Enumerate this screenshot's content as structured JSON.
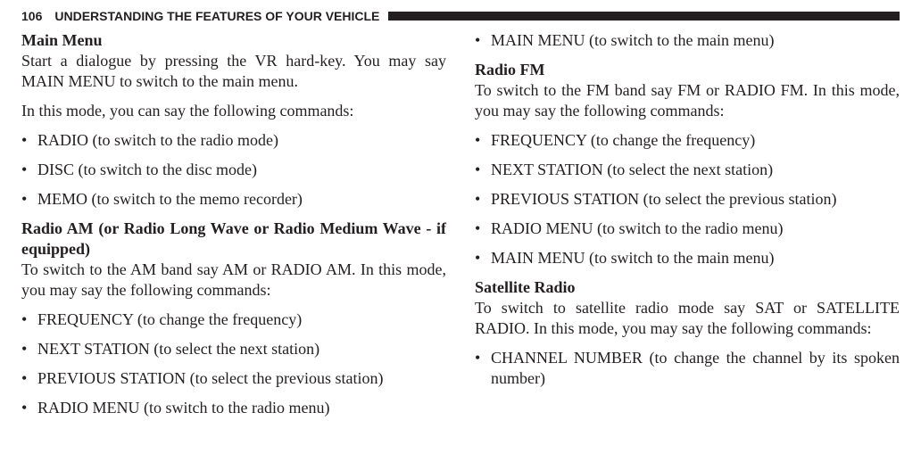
{
  "header": {
    "page_number": "106",
    "section_title": "UNDERSTANDING THE FEATURES OF YOUR VEHICLE"
  },
  "left": {
    "main_menu_heading": "Main Menu",
    "main_menu_body1": "Start a dialogue by pressing the VR hard-key. You may say MAIN MENU to switch to the main menu.",
    "main_menu_body2": "In this mode, you can say the following commands:",
    "main_menu_items": {
      "i0": "RADIO (to switch to the radio mode)",
      "i1": "DISC (to switch to the disc mode)",
      "i2": "MEMO (to switch to the memo recorder)"
    },
    "radio_am_heading": "Radio AM (or Radio Long Wave or Radio Medium Wave - if equipped)",
    "radio_am_body": "To switch to the AM band say AM or RADIO AM. In this mode, you may say the following commands:",
    "radio_am_items": {
      "i0": "FREQUENCY (to change the frequency)",
      "i1": "NEXT STATION (to select the next station)",
      "i2": "PREVIOUS STATION (to select the previous station)",
      "i3": "RADIO MENU (to switch to the radio menu)"
    }
  },
  "right": {
    "top_items": {
      "i0": "MAIN MENU (to switch to the main menu)"
    },
    "radio_fm_heading": "Radio FM",
    "radio_fm_body": "To switch to the FM band say FM or RADIO FM. In this mode, you may say the following commands:",
    "radio_fm_items": {
      "i0": "FREQUENCY (to change the frequency)",
      "i1": "NEXT STATION (to select the next station)",
      "i2": "PREVIOUS STATION (to select the previous station)",
      "i3": "RADIO MENU (to switch to the radio menu)",
      "i4": "MAIN MENU (to switch to the main menu)"
    },
    "sat_heading": "Satellite Radio",
    "sat_body": "To switch to satellite radio mode say SAT or SATELLITE RADIO. In this mode, you may say the following com­mands:",
    "sat_items": {
      "i0": "CHANNEL NUMBER (to change the channel by its spoken number)"
    }
  }
}
